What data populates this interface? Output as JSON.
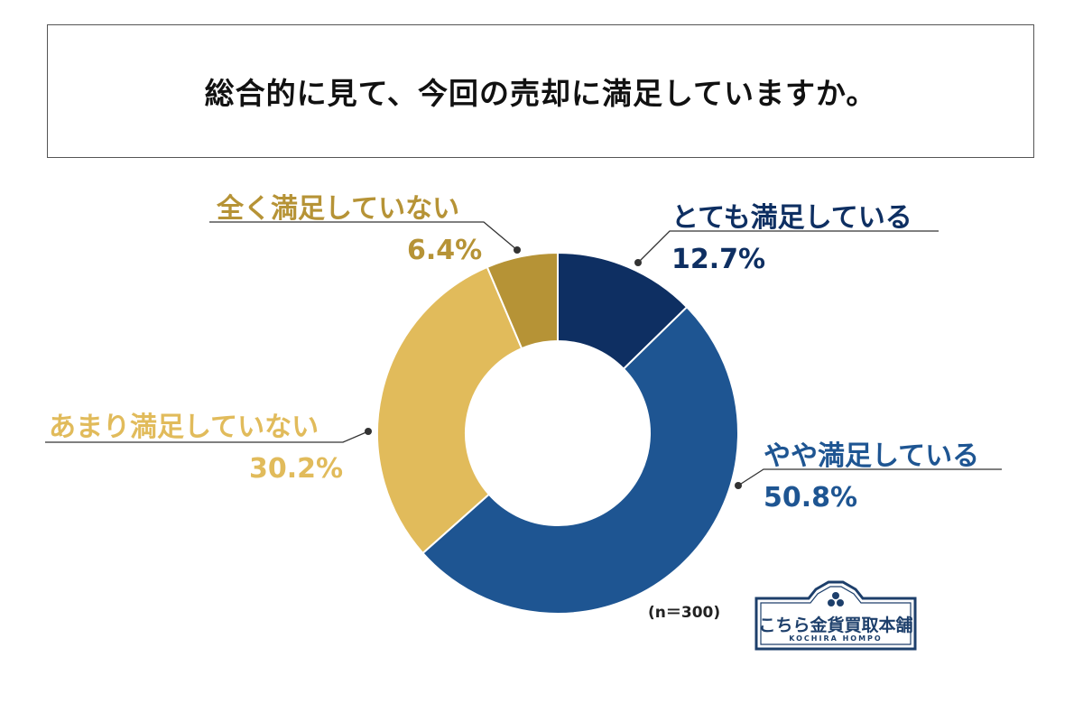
{
  "title": "総合的に見て、今回の売却に満足していますか。",
  "sample_size_label": "(n＝300)",
  "logo": {
    "name": "こちら金貨買取本舗",
    "sub": "KOCHIRA HOMPO"
  },
  "chart_data": {
    "type": "pie",
    "donut": true,
    "title": "総合的に見て、今回の売却に満足していますか。",
    "slices": [
      {
        "label": "とても満足している",
        "value": 12.7,
        "value_label": "12.7%",
        "color": "#0e2f62"
      },
      {
        "label": "やや満足している",
        "value": 50.8,
        "value_label": "50.8%",
        "color": "#1e5592"
      },
      {
        "label": "あまり満足していない",
        "value": 30.2,
        "value_label": "30.2%",
        "color": "#e1bb5b"
      },
      {
        "label": "全く満足していない",
        "value": 6.4,
        "value_label": "6.4%",
        "color": "#b69336"
      }
    ],
    "label_colors": [
      "#0e2f62",
      "#1e5592",
      "#e1bb5b",
      "#b69336"
    ]
  }
}
